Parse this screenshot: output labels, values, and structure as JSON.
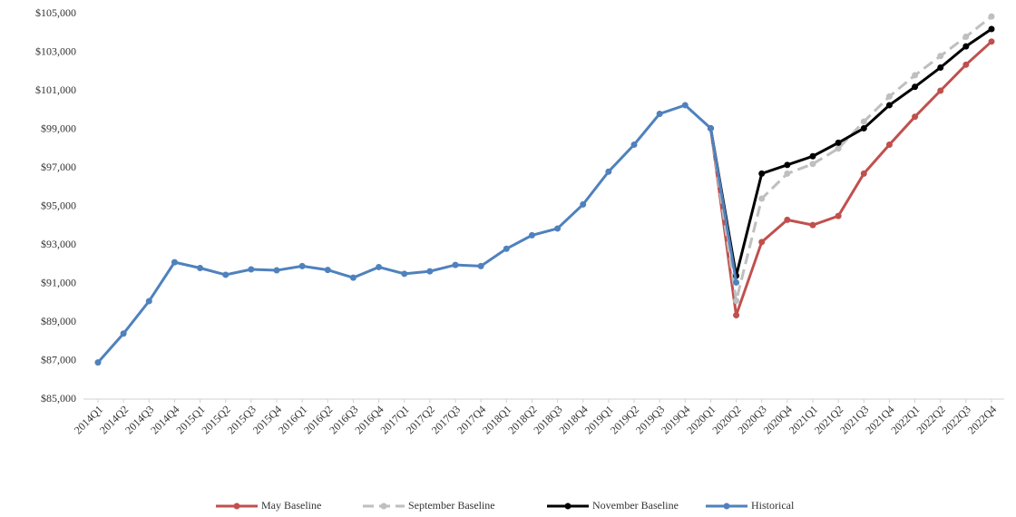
{
  "chart_data": {
    "type": "line",
    "categories": [
      "2014Q1",
      "2014Q2",
      "2014Q3",
      "2014Q4",
      "2015Q1",
      "2015Q2",
      "2015Q3",
      "2015Q4",
      "2016Q1",
      "2016Q2",
      "2016Q3",
      "2016Q4",
      "2017Q1",
      "2017Q2",
      "2017Q3",
      "2017Q4",
      "2018Q1",
      "2018Q2",
      "2018Q3",
      "2018Q4",
      "2019Q1",
      "2019Q2",
      "2019Q3",
      "2019Q4",
      "2020Q1",
      "2020Q2",
      "2020Q3",
      "2020Q4",
      "2021Q1",
      "2021Q2",
      "2021Q3",
      "2021Q4",
      "2022Q1",
      "2022Q2",
      "2022Q3",
      "2022Q4"
    ],
    "series": [
      {
        "name": "May Baseline",
        "color": "#c0504d",
        "values": [
          null,
          null,
          null,
          null,
          null,
          null,
          null,
          null,
          null,
          null,
          null,
          null,
          null,
          null,
          null,
          null,
          null,
          null,
          null,
          null,
          null,
          null,
          null,
          null,
          99050,
          89350,
          93150,
          94300,
          94030,
          94500,
          96700,
          98200,
          99650,
          101000,
          102350,
          103550
        ]
      },
      {
        "name": "September Baseline",
        "color": "#bfbfbf",
        "dashed": true,
        "values": [
          null,
          null,
          null,
          null,
          null,
          null,
          null,
          null,
          null,
          null,
          null,
          null,
          null,
          null,
          null,
          null,
          null,
          null,
          null,
          null,
          null,
          null,
          null,
          null,
          99050,
          90100,
          95400,
          96700,
          97200,
          98000,
          99400,
          100700,
          101800,
          102800,
          103800,
          104850
        ]
      },
      {
        "name": "November Baseline",
        "color": "#000000",
        "values": [
          null,
          null,
          null,
          null,
          null,
          null,
          null,
          null,
          null,
          null,
          null,
          null,
          null,
          null,
          null,
          null,
          null,
          null,
          null,
          null,
          null,
          null,
          null,
          null,
          99050,
          91400,
          96700,
          97150,
          97600,
          98300,
          99050,
          100250,
          101200,
          102200,
          103300,
          104200
        ]
      },
      {
        "name": "Historical",
        "color": "#4f81bd",
        "values": [
          86900,
          88400,
          90080,
          92100,
          91800,
          91450,
          91730,
          91680,
          91900,
          91700,
          91300,
          91850,
          91500,
          91630,
          91960,
          91900,
          92800,
          93500,
          93850,
          95100,
          96800,
          98200,
          99800,
          100250,
          99050,
          91050,
          null,
          null,
          null,
          null,
          null,
          null,
          null,
          null,
          null,
          null
        ]
      }
    ],
    "ylim": [
      85000,
      105000
    ],
    "yticks": [
      {
        "value": 85000,
        "label": "$85,000"
      },
      {
        "value": 87000,
        "label": "$87,000"
      },
      {
        "value": 89000,
        "label": "$89,000"
      },
      {
        "value": 91000,
        "label": "$91,000"
      },
      {
        "value": 93000,
        "label": "$93,000"
      },
      {
        "value": 95000,
        "label": "$95,000"
      },
      {
        "value": 97000,
        "label": "$97,000"
      },
      {
        "value": 99000,
        "label": "$99,000"
      },
      {
        "value": 101000,
        "label": "$101,000"
      },
      {
        "value": 103000,
        "label": "$103,000"
      },
      {
        "value": 105000,
        "label": "$105,000"
      }
    ],
    "grid": false,
    "legend": "bottom"
  }
}
